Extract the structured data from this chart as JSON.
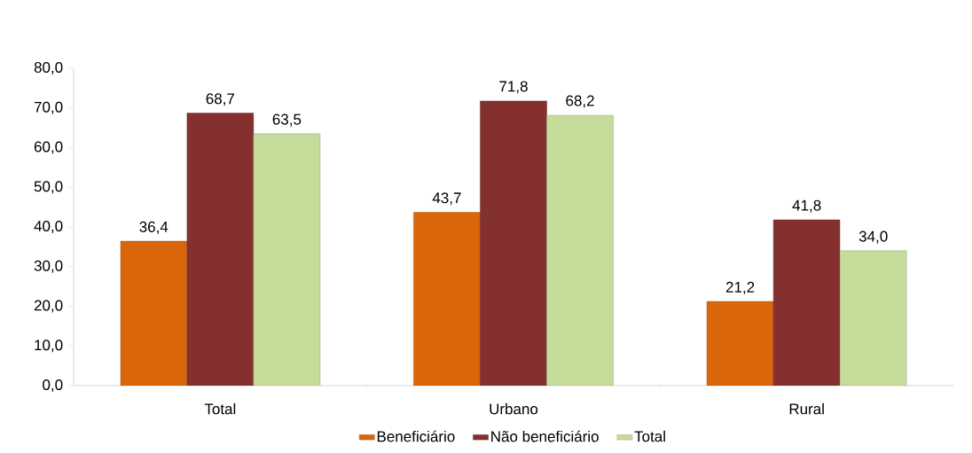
{
  "chart_data": {
    "type": "bar",
    "categories": [
      "Total",
      "Urbano",
      "Rural"
    ],
    "series": [
      {
        "name": "Beneficiário",
        "color": "#d9660b",
        "values": [
          36.4,
          43.7,
          21.2
        ],
        "value_labels": [
          "36,4",
          "43,7",
          "21,2"
        ]
      },
      {
        "name": "Não beneficiário",
        "color": "#84302f",
        "values": [
          68.7,
          71.8,
          41.8
        ],
        "value_labels": [
          "68,7",
          "71,8",
          "41,8"
        ]
      },
      {
        "name": "Total",
        "color": "#c5dc9b",
        "values": [
          63.5,
          68.2,
          34.0
        ],
        "value_labels": [
          "63,5",
          "68,2",
          "34,0"
        ]
      }
    ],
    "ylim": [
      0,
      80
    ],
    "yticks": [
      {
        "value": 0,
        "label": "0,0"
      },
      {
        "value": 10,
        "label": "10,0"
      },
      {
        "value": 20,
        "label": "20,0"
      },
      {
        "value": 30,
        "label": "30,0"
      },
      {
        "value": 40,
        "label": "40,0"
      },
      {
        "value": 50,
        "label": "50,0"
      },
      {
        "value": 60,
        "label": "60,0"
      },
      {
        "value": 70,
        "label": "70,0"
      },
      {
        "value": 80,
        "label": "80,0"
      }
    ],
    "grid": false,
    "legend": "bottom"
  }
}
